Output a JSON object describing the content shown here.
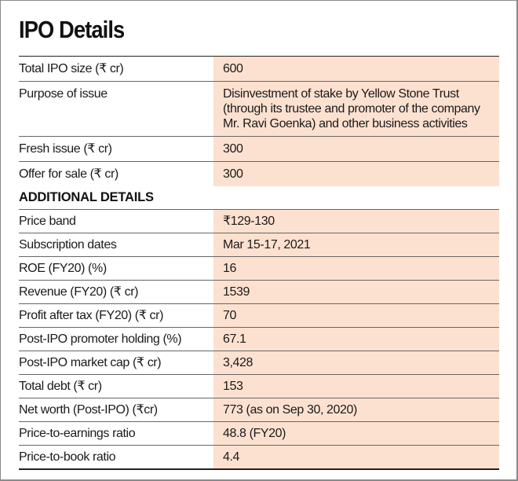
{
  "title": "IPO Details",
  "colors": {
    "value_bg": "#fde1d0",
    "rule": "#222222"
  },
  "rows_main": [
    {
      "label": "Total IPO size (₹ cr)",
      "value": "600"
    },
    {
      "label": "Purpose of issue",
      "value": "Disinvestment of stake by Yellow Stone Trust (through its trustee and promoter of the company Mr. Ravi Goenka) and other business activities"
    },
    {
      "label": "Fresh issue (₹ cr)",
      "value": "300"
    },
    {
      "label": "Offer for sale (₹ cr)",
      "value": "300"
    }
  ],
  "section_heading": "ADDITIONAL DETAILS",
  "rows_additional": [
    {
      "label": "Price band",
      "value": "₹129-130"
    },
    {
      "label": "Subscription dates",
      "value": "Mar 15-17, 2021"
    },
    {
      "label": "ROE (FY20) (%)",
      "value": "16"
    },
    {
      "label": "Revenue (FY20) (₹ cr)",
      "value": "1539"
    },
    {
      "label": "Profit after tax (FY20) (₹ cr)",
      "value": "70"
    },
    {
      "label": "Post-IPO promoter holding (%)",
      "value": "67.1"
    },
    {
      "label": "Post-IPO market cap (₹ cr)",
      "value": "3,428"
    },
    {
      "label": "Total debt (₹ cr)",
      "value": "153"
    },
    {
      "label": "Net worth (Post-IPO) (₹cr)",
      "value": "773 (as on Sep 30, 2020)"
    },
    {
      "label": "Price-to-earnings ratio",
      "value": "48.8 (FY20)"
    },
    {
      "label": "Price-to-book ratio",
      "value": "4.4"
    }
  ]
}
